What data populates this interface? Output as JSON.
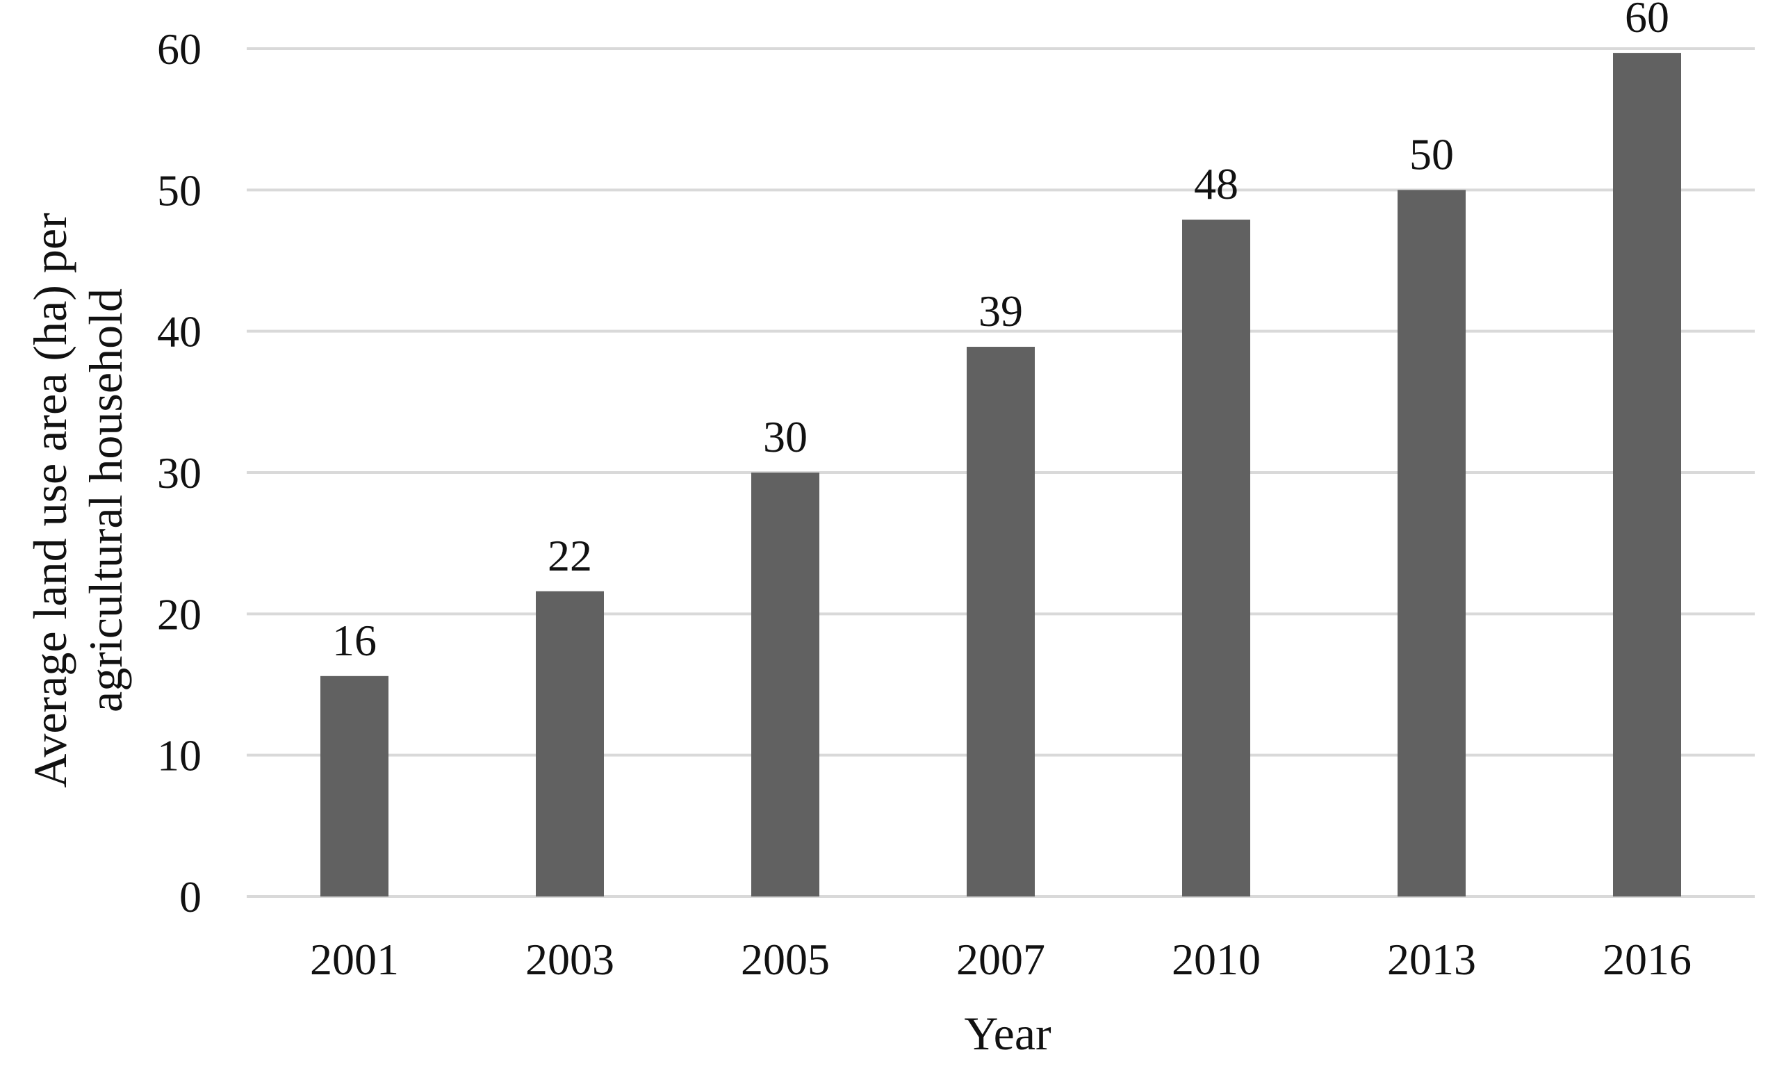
{
  "colors": {
    "bar": "#616161",
    "grid": "#d9d9d9",
    "text": "#111111",
    "background": "#ffffff"
  },
  "chart_data": {
    "type": "bar",
    "title": "",
    "xlabel": "Year",
    "ylabel_lines": [
      "Average land use area (ha) per",
      "agricultural household"
    ],
    "categories": [
      "2001",
      "2003",
      "2005",
      "2007",
      "2010",
      "2013",
      "2016"
    ],
    "values": [
      15.6,
      21.6,
      30,
      38.9,
      47.9,
      50,
      59.7
    ],
    "data_labels": [
      "16",
      "22",
      "30",
      "39",
      "48",
      "50",
      "60"
    ],
    "ylim": [
      0,
      60
    ],
    "yticks": [
      0,
      10,
      20,
      30,
      40,
      50,
      60
    ],
    "grid": true,
    "legend": "none"
  }
}
